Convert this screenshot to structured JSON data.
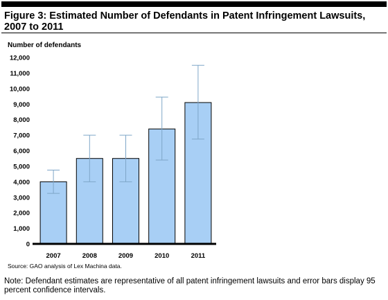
{
  "figure": {
    "title": "Figure 3: Estimated Number of Defendants in Patent Infringement Lawsuits, 2007 to 2011",
    "source": "Source: GAO analysis of Lex Machina data.",
    "note": "Note: Defendant estimates are representative of all patent infringement lawsuits and error bars display 95 percent confidence intervals."
  },
  "chart_data": {
    "type": "bar",
    "title": "Figure 3: Estimated Number of Defendants in Patent Infringement Lawsuits, 2007 to 2011",
    "ylabel": "Number of defendants",
    "xlabel": "",
    "categories": [
      "2007",
      "2008",
      "2009",
      "2010",
      "2011"
    ],
    "values": [
      4000,
      5500,
      5500,
      7400,
      9100
    ],
    "error_low": [
      3250,
      4000,
      4000,
      5400,
      6750
    ],
    "error_high": [
      4750,
      7000,
      7000,
      9450,
      11500
    ],
    "ylim": [
      0,
      12000
    ],
    "yticks": [
      0,
      1000,
      2000,
      3000,
      4000,
      5000,
      6000,
      7000,
      8000,
      9000,
      10000,
      11000,
      12000
    ],
    "ytick_labels": [
      "0",
      "1,000",
      "2,000",
      "3,000",
      "4,000",
      "5,000",
      "6,000",
      "7,000",
      "8,000",
      "9,000",
      "10,000",
      "11,000",
      "12,000"
    ],
    "grid": false,
    "legend": "none",
    "colors": {
      "bar_fill": "#a8cff5",
      "bar_stroke": "#000000",
      "error_bar": "#7ea6c8",
      "axis": "#000000"
    }
  }
}
